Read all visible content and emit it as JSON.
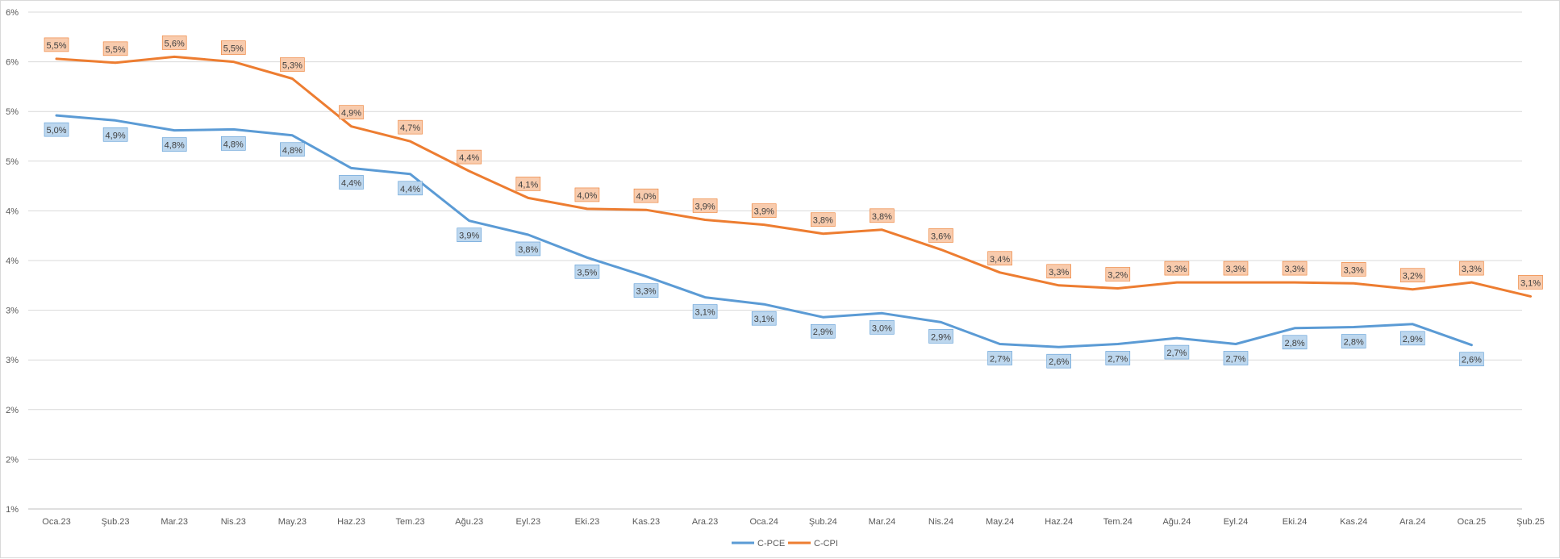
{
  "chart_data": {
    "type": "line",
    "title": "",
    "xlabel": "",
    "ylabel": "",
    "x": [
      "Oca.23",
      "Şub.23",
      "Mar.23",
      "Nis.23",
      "May.23",
      "Haz.23",
      "Tem.23",
      "Ağu.23",
      "Eyl.23",
      "Eki.23",
      "Kas.23",
      "Ara.23",
      "Oca.24",
      "Şub.24",
      "Mar.24",
      "Nis.24",
      "May.24",
      "Haz.24",
      "Tem.24",
      "Ağu.24",
      "Eyl.24",
      "Eki.24",
      "Kas.24",
      "Ara.24",
      "Oca.25",
      "Şub.25"
    ],
    "y_ticks": [
      "1%",
      "2%",
      "2%",
      "3%",
      "3%",
      "4%",
      "4%",
      "5%",
      "5%",
      "6%",
      "6%"
    ],
    "ylim": [
      1.0,
      6.0
    ],
    "grid": true,
    "legend_position": "bottom",
    "colors": {
      "C-PCE": "#5b9bd5",
      "C-CPI": "#ed7d31",
      "grid": "#d9d9d9",
      "axis_text": "#595959"
    },
    "series": [
      {
        "name": "C-PCE",
        "color": "#5b9bd5",
        "label_fill": "#bdd7ee",
        "label_position": "below",
        "values": [
          4.96,
          4.91,
          4.81,
          4.82,
          4.76,
          4.43,
          4.37,
          3.9,
          3.76,
          3.53,
          3.34,
          3.13,
          3.06,
          2.93,
          2.97,
          2.88,
          2.66,
          2.63,
          2.66,
          2.72,
          2.66,
          2.82,
          2.83,
          2.86,
          2.65,
          null
        ],
        "labels": [
          "5,0%",
          "4,9%",
          "4,8%",
          "4,8%",
          "4,8%",
          "4,4%",
          "4,4%",
          "3,9%",
          "3,8%",
          "3,5%",
          "3,3%",
          "3,1%",
          "3,1%",
          "2,9%",
          "3,0%",
          "2,9%",
          "2,7%",
          "2,6%",
          "2,7%",
          "2,7%",
          "2,7%",
          "2,8%",
          "2,8%",
          "2,9%",
          "2,6%",
          ""
        ]
      },
      {
        "name": "C-CPI",
        "color": "#ed7d31",
        "label_fill": "#f8cbad",
        "label_position": "above",
        "values": [
          5.53,
          5.49,
          5.55,
          5.5,
          5.33,
          4.85,
          4.7,
          4.4,
          4.13,
          4.02,
          4.01,
          3.91,
          3.86,
          3.77,
          3.81,
          3.61,
          3.38,
          3.25,
          3.22,
          3.28,
          3.28,
          3.28,
          3.27,
          3.21,
          3.28,
          3.14
        ],
        "labels": [
          "5,5%",
          "5,5%",
          "5,6%",
          "5,5%",
          "5,3%",
          "4,9%",
          "4,7%",
          "4,4%",
          "4,1%",
          "4,0%",
          "4,0%",
          "3,9%",
          "3,9%",
          "3,8%",
          "3,8%",
          "3,6%",
          "3,4%",
          "3,3%",
          "3,2%",
          "3,3%",
          "3,3%",
          "3,3%",
          "3,3%",
          "3,2%",
          "3,3%",
          "3,1%"
        ]
      }
    ]
  }
}
